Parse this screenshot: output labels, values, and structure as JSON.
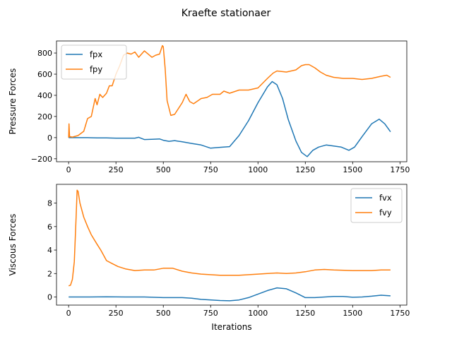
{
  "title": "Kraefte stationaer",
  "colors": {
    "series1": "#1f77b4",
    "series2": "#ff7f0e"
  },
  "chart_data": [
    {
      "type": "line",
      "xlabel": "",
      "ylabel": "Pressure Forces",
      "xlim": [
        -64,
        1786
      ],
      "ylim": [
        -228,
        914
      ],
      "xticks": [
        0,
        250,
        500,
        750,
        1000,
        1250,
        1500,
        1750
      ],
      "yticks": [
        -200,
        0,
        200,
        400,
        600,
        800
      ],
      "legend": "upper left",
      "series": [
        {
          "name": "fpx",
          "color": "#1f77b4",
          "x": [
            0,
            50,
            100,
            150,
            200,
            250,
            300,
            350,
            370,
            400,
            450,
            480,
            500,
            530,
            560,
            600,
            650,
            700,
            750,
            800,
            850,
            900,
            950,
            1000,
            1050,
            1075,
            1100,
            1130,
            1160,
            1200,
            1230,
            1260,
            1290,
            1320,
            1360,
            1400,
            1440,
            1480,
            1510,
            1550,
            1600,
            1640,
            1670,
            1700
          ],
          "y": [
            0,
            0,
            0,
            -3,
            -3,
            -5,
            -5,
            -5,
            3,
            -18,
            -15,
            -12,
            -25,
            -35,
            -28,
            -40,
            -55,
            -70,
            -100,
            -92,
            -85,
            20,
            160,
            330,
            480,
            530,
            500,
            370,
            170,
            -30,
            -140,
            -180,
            -120,
            -90,
            -70,
            -80,
            -90,
            -120,
            -90,
            10,
            130,
            175,
            130,
            55
          ]
        },
        {
          "name": "fpy",
          "color": "#ff7f0e",
          "x": [
            0,
            2,
            5,
            20,
            50,
            80,
            100,
            120,
            140,
            150,
            165,
            180,
            200,
            215,
            230,
            250,
            270,
            290,
            310,
            330,
            350,
            370,
            380,
            400,
            420,
            440,
            460,
            480,
            495,
            500,
            510,
            520,
            540,
            560,
            600,
            620,
            640,
            660,
            700,
            730,
            760,
            800,
            820,
            850,
            900,
            950,
            1000,
            1050,
            1080,
            1100,
            1150,
            1200,
            1230,
            1250,
            1270,
            1300,
            1330,
            1360,
            1400,
            1450,
            1500,
            1550,
            1600,
            1650,
            1680,
            1700
          ],
          "y": [
            0,
            130,
            10,
            5,
            20,
            60,
            180,
            200,
            370,
            310,
            410,
            380,
            420,
            490,
            490,
            600,
            680,
            780,
            800,
            790,
            810,
            760,
            780,
            820,
            790,
            760,
            780,
            790,
            870,
            860,
            650,
            350,
            210,
            220,
            330,
            410,
            340,
            320,
            370,
            380,
            410,
            410,
            440,
            420,
            450,
            450,
            470,
            560,
            610,
            630,
            620,
            640,
            680,
            690,
            690,
            660,
            620,
            590,
            570,
            560,
            560,
            550,
            560,
            580,
            590,
            570
          ]
        }
      ]
    },
    {
      "type": "line",
      "xlabel": "Iterations",
      "ylabel": "Viscous Forces",
      "xlim": [
        -64,
        1786
      ],
      "ylim": [
        -0.69,
        9.6
      ],
      "xticks": [
        0,
        250,
        500,
        750,
        1000,
        1250,
        1500,
        1750
      ],
      "yticks": [
        0,
        2,
        4,
        6,
        8
      ],
      "legend": "upper right",
      "series": [
        {
          "name": "fvx",
          "color": "#1f77b4",
          "x": [
            0,
            100,
            200,
            300,
            400,
            500,
            600,
            650,
            700,
            800,
            850,
            900,
            950,
            1000,
            1050,
            1100,
            1150,
            1200,
            1250,
            1300,
            1400,
            1450,
            1500,
            1550,
            1600,
            1650,
            1700
          ],
          "y": [
            0.0,
            0.0,
            0.02,
            0.0,
            0.0,
            -0.05,
            -0.05,
            -0.1,
            -0.2,
            -0.3,
            -0.32,
            -0.25,
            -0.05,
            0.25,
            0.55,
            0.78,
            0.7,
            0.35,
            -0.05,
            -0.05,
            0.05,
            0.05,
            -0.02,
            0.0,
            0.07,
            0.15,
            0.1
          ]
        },
        {
          "name": "fvy",
          "color": "#ff7f0e",
          "x": [
            0,
            10,
            20,
            30,
            40,
            45,
            50,
            60,
            80,
            100,
            120,
            150,
            170,
            190,
            200,
            230,
            260,
            300,
            350,
            400,
            450,
            500,
            550,
            600,
            650,
            700,
            800,
            900,
            1000,
            1050,
            1100,
            1150,
            1200,
            1250,
            1300,
            1350,
            1400,
            1500,
            1600,
            1650,
            1700
          ],
          "y": [
            0.95,
            1.0,
            1.5,
            3.0,
            7.0,
            9.1,
            9.0,
            8.0,
            6.8,
            6.0,
            5.3,
            4.5,
            4.0,
            3.4,
            3.1,
            2.85,
            2.6,
            2.4,
            2.25,
            2.3,
            2.3,
            2.45,
            2.45,
            2.2,
            2.05,
            1.95,
            1.85,
            1.85,
            1.95,
            2.0,
            2.05,
            2.0,
            2.05,
            2.15,
            2.3,
            2.35,
            2.3,
            2.25,
            2.25,
            2.3,
            2.3
          ]
        }
      ]
    }
  ]
}
